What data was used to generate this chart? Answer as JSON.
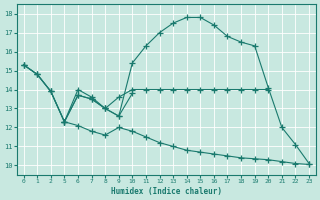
{
  "xlabel": "Humidex (Indice chaleur)",
  "bg_color": "#c8e8e0",
  "grid_color": "#ffffff",
  "line_color": "#1a7a6e",
  "xlim": [
    -0.5,
    23.5
  ],
  "ylim": [
    9.5,
    18.5
  ],
  "xticks": [
    0,
    1,
    2,
    5,
    6,
    7,
    8,
    9,
    10,
    11,
    12,
    13,
    14,
    15,
    16,
    17,
    18,
    19,
    20,
    21,
    22,
    23
  ],
  "yticks": [
    10,
    11,
    12,
    13,
    14,
    15,
    16,
    17,
    18
  ],
  "line1": {
    "x": [
      0,
      1,
      2,
      5,
      6,
      7,
      8,
      9,
      10,
      11,
      12,
      13,
      14,
      15,
      16,
      17,
      18,
      19,
      20,
      21,
      22,
      23
    ],
    "y": [
      15.3,
      14.8,
      13.9,
      12.3,
      13.7,
      13.5,
      13.0,
      12.6,
      15.4,
      16.3,
      17.0,
      17.5,
      17.8,
      17.8,
      17.4,
      16.8,
      16.5,
      16.3,
      14.1,
      12.0,
      11.1,
      10.1
    ]
  },
  "line2": {
    "x": [
      0,
      1,
      2,
      5,
      6,
      7,
      8,
      9,
      10,
      11,
      12,
      13,
      14,
      15,
      16,
      17,
      18,
      19,
      20
    ],
    "y": [
      15.3,
      14.8,
      13.9,
      12.3,
      14.0,
      13.6,
      13.0,
      13.6,
      14.0,
      14.0,
      14.0,
      14.0,
      14.0,
      14.0,
      14.0,
      14.0,
      14.0,
      14.0,
      14.0
    ]
  },
  "line3": {
    "x": [
      5,
      6,
      7,
      8,
      9,
      10
    ],
    "y": [
      12.3,
      13.7,
      13.5,
      13.0,
      12.6,
      13.8
    ]
  },
  "line4": {
    "x": [
      0,
      1,
      2,
      5,
      6,
      7,
      8,
      9,
      10,
      11,
      12,
      13,
      14,
      15,
      16,
      17,
      18,
      19,
      20,
      21,
      22,
      23
    ],
    "y": [
      15.3,
      14.8,
      13.9,
      12.3,
      12.1,
      11.8,
      11.6,
      12.0,
      11.8,
      11.5,
      11.2,
      11.0,
      10.8,
      10.7,
      10.6,
      10.5,
      10.4,
      10.35,
      10.3,
      10.2,
      10.1,
      10.05
    ]
  }
}
